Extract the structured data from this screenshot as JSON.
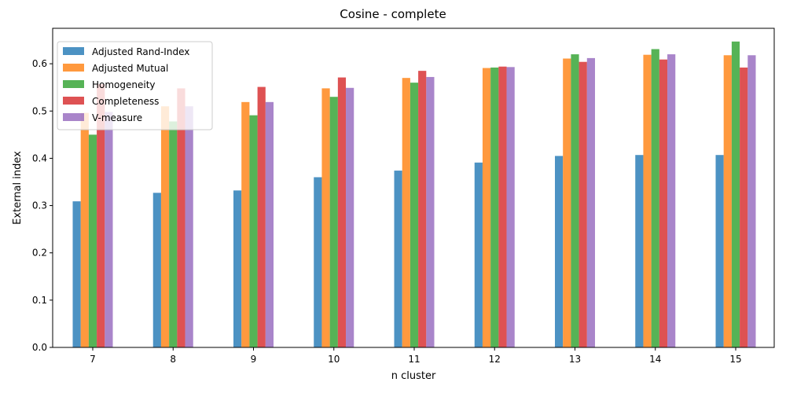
{
  "chart_data": {
    "type": "bar",
    "title": "Cosine - complete",
    "xlabel": "n cluster",
    "ylabel": "External index",
    "categories": [
      "7",
      "8",
      "9",
      "10",
      "11",
      "12",
      "13",
      "14",
      "15"
    ],
    "ylim": [
      0,
      0.675
    ],
    "yticks": [
      "0.0",
      "0.1",
      "0.2",
      "0.3",
      "0.4",
      "0.5",
      "0.6"
    ],
    "legend_position": "top-left",
    "grid": false,
    "series": [
      {
        "name": "Adjusted Rand-Index",
        "color": "#1f77b4",
        "values": [
          0.309,
          0.327,
          0.332,
          0.36,
          0.374,
          0.391,
          0.405,
          0.407,
          0.407
        ]
      },
      {
        "name": "Adjusted Mutual",
        "color": "#ff7f0e",
        "values": [
          0.496,
          0.51,
          0.519,
          0.548,
          0.57,
          0.591,
          0.611,
          0.619,
          0.618
        ]
      },
      {
        "name": "Homogeneity",
        "color": "#2ca02c",
        "values": [
          0.45,
          0.478,
          0.491,
          0.53,
          0.56,
          0.592,
          0.62,
          0.631,
          0.647
        ]
      },
      {
        "name": "Completeness",
        "color": "#d62728",
        "values": [
          0.557,
          0.548,
          0.551,
          0.571,
          0.585,
          0.594,
          0.604,
          0.609,
          0.592
        ]
      },
      {
        "name": "V-measure",
        "color": "#9467bd",
        "values": [
          0.498,
          0.51,
          0.519,
          0.549,
          0.572,
          0.593,
          0.612,
          0.62,
          0.618
        ]
      }
    ]
  }
}
